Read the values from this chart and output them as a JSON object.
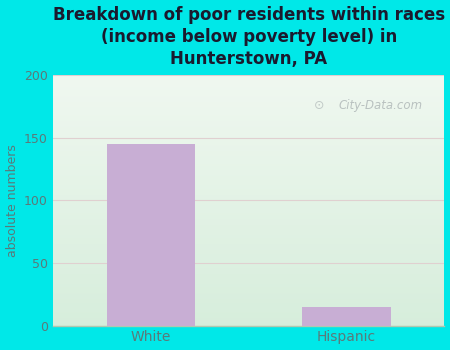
{
  "categories": [
    "White",
    "Hispanic"
  ],
  "values": [
    145,
    15
  ],
  "bar_color": "#c8aed4",
  "title": "Breakdown of poor residents within races\n(income below poverty level) in\nHunterstown, PA",
  "ylabel": "absolute numbers",
  "ylim": [
    0,
    200
  ],
  "yticks": [
    0,
    50,
    100,
    150,
    200
  ],
  "background_color": "#00e8e8",
  "plot_bg_color_top": "#eaf5ea",
  "plot_bg_color_bottom": "#d8eedc",
  "title_fontsize": 12,
  "title_color": "#1a1a2e",
  "ylabel_color": "#5a7a7a",
  "tick_color": "#5a7a7a",
  "watermark": "City-Data.com",
  "bar_width": 0.45,
  "grid_color": "#c8dfc8",
  "bottom_line_color": "#b0c8b0"
}
